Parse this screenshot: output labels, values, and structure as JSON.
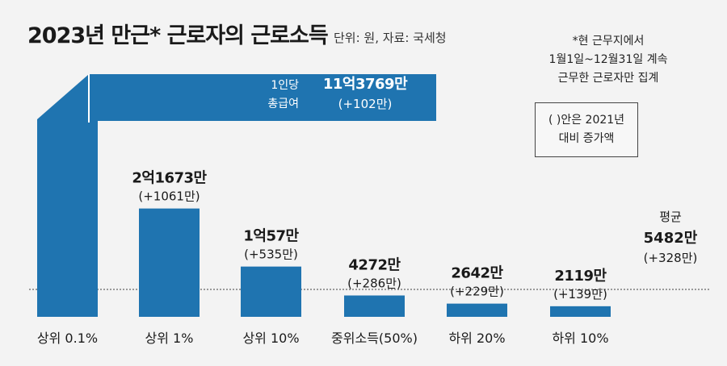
{
  "title": "2023년 만근* 근로자의 근로소득",
  "source": "단위: 원, 자료: 국세청",
  "note": [
    "*현 근무지에서",
    "1월1일~12월31일 계속",
    "근무한 근로자만 집계"
  ],
  "legend_note": [
    "( )안은 2021년",
    "대비 증가액"
  ],
  "colors": {
    "bar": "#1f74b0",
    "text": "#1a1a1a",
    "avg_line": "#666666"
  },
  "chart_data": {
    "type": "bar",
    "categories": [
      "상위 0.1%",
      "상위 1%",
      "상위 10%",
      "중위소득(50%)",
      "하위 20%",
      "하위 10%"
    ],
    "values": [
      113769,
      21673,
      10057,
      4272,
      2642,
      2119
    ],
    "value_labels": [
      "11억3769만",
      "2억1673만",
      "1억57만",
      "4272만",
      "2642만",
      "2119만"
    ],
    "change_labels": [
      "(+102만)",
      "(+1061만)",
      "(+535만)",
      "(+286만)",
      "(+229만)",
      "(+139만)"
    ],
    "top_bar_caption": [
      "1인당",
      "총급여"
    ],
    "average": {
      "label": "평균",
      "value": 5482,
      "value_label": "5482만",
      "change_label": "(+328만)"
    },
    "unit": "만원",
    "title": "2023년 만근* 근로자의 근로소득",
    "grid": false
  }
}
